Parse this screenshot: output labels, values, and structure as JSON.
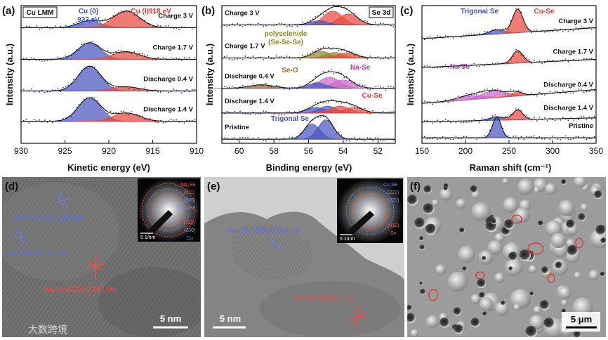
{
  "chart_data": [
    {
      "type": "line",
      "panel": "(a)",
      "title": "",
      "xlabel": "Kinetic energy (eV)",
      "ylabel": "Intensity (a.u.)",
      "xlim": [
        930,
        910
      ],
      "xticks": [
        930,
        925,
        920,
        915,
        910
      ],
      "badge": "Cu LMM",
      "annotations": [
        {
          "text": "Cu (0)",
          "color": "#3d50c8"
        },
        {
          "text": "922 eV",
          "color": "#3d50c8"
        },
        {
          "text": "Cu (I)918 eV",
          "color": "#e03c32"
        }
      ],
      "series": [
        {
          "name": "Charge 3 V",
          "baseline": 0.16,
          "components": [
            {
              "label": "Cu (0)",
              "center": 922.2,
              "width": 1.3,
              "height": 0.05,
              "color": "#4a56c0"
            },
            {
              "label": "Cu (I)",
              "center": 918.0,
              "width": 1.5,
              "height": 0.12,
              "color": "#e84a3e"
            }
          ]
        },
        {
          "name": "Charge 1.7 V",
          "baseline": 0.39,
          "components": [
            {
              "label": "Cu (0)",
              "center": 922.2,
              "width": 1.3,
              "height": 0.12,
              "color": "#4a56c0"
            },
            {
              "label": "Cu (I)",
              "center": 918.0,
              "width": 1.5,
              "height": 0.055,
              "color": "#e84a3e"
            }
          ]
        },
        {
          "name": "Discharge 0.4 V",
          "baseline": 0.62,
          "components": [
            {
              "label": "Cu (0)",
              "center": 922.2,
              "width": 1.3,
              "height": 0.18,
              "color": "#4a56c0"
            },
            {
              "label": "Cu (I)",
              "center": 918.0,
              "width": 1.5,
              "height": 0.03,
              "color": "#e84a3e"
            }
          ]
        },
        {
          "name": "Discharge 1.4 V",
          "baseline": 0.84,
          "components": [
            {
              "label": "Cu (0)",
              "center": 922.2,
              "width": 1.3,
              "height": 0.17,
              "color": "#4a56c0"
            },
            {
              "label": "Cu (I)",
              "center": 918.0,
              "width": 1.5,
              "height": 0.06,
              "color": "#e84a3e"
            }
          ]
        }
      ]
    },
    {
      "type": "line",
      "panel": "(b)",
      "title": "",
      "xlabel": "Binding energy (eV)",
      "ylabel": "Intensity (a.u.)",
      "xlim": [
        61,
        51
      ],
      "xticks": [
        60,
        58,
        56,
        54,
        52
      ],
      "badge": "Se 3d",
      "annotations": [
        {
          "text": "polyselenide",
          "color": "#8a8a2e"
        },
        {
          "text": "(Se-Se-Se)",
          "color": "#8a8a2e"
        },
        {
          "text": "Se-O",
          "color": "#a0692a"
        },
        {
          "text": "Na-Se",
          "color": "#b040b0"
        },
        {
          "text": "Cu-Se",
          "color": "#e03c32"
        },
        {
          "text": "Trigonal Se",
          "color": "#3d50c8"
        }
      ],
      "series": [
        {
          "name": "Charge 3 V",
          "baseline": 0.14,
          "components": [
            {
              "label": "Cu-Se",
              "center": 54.6,
              "width": 0.55,
              "height": 0.1,
              "color": "#e84a3e"
            },
            {
              "label": "Cu-Se",
              "center": 53.7,
              "width": 0.55,
              "height": 0.08,
              "color": "#e84a3e"
            },
            {
              "label": "Trigonal Se",
              "center": 55.4,
              "width": 0.5,
              "height": 0.03,
              "color": "#4a56c0"
            }
          ]
        },
        {
          "name": "Charge 1.7 V",
          "baseline": 0.38,
          "components": [
            {
              "label": "polyselenide",
              "center": 55.3,
              "width": 0.5,
              "height": 0.05,
              "color": "#8a8a2e"
            },
            {
              "label": "polyselenide",
              "center": 54.5,
              "width": 0.5,
              "height": 0.04,
              "color": "#8a8a2e"
            },
            {
              "label": "Cu-Se",
              "center": 53.8,
              "width": 0.55,
              "height": 0.035,
              "color": "#e84a3e"
            }
          ]
        },
        {
          "name": "Discharge 0.4 V",
          "baseline": 0.6,
          "components": [
            {
              "label": "Se-O",
              "center": 58.7,
              "width": 0.7,
              "height": 0.025,
              "color": "#a0692a"
            },
            {
              "label": "Na-Se",
              "center": 54.8,
              "width": 0.6,
              "height": 0.08,
              "color": "#c86ac8"
            },
            {
              "label": "Na-Se",
              "center": 54.0,
              "width": 0.6,
              "height": 0.06,
              "color": "#c86ac8"
            },
            {
              "label": "Trigonal Se",
              "center": 55.5,
              "width": 0.5,
              "height": 0.04,
              "color": "#4a56c0"
            }
          ]
        },
        {
          "name": "Discharge 1.4 V",
          "baseline": 0.78,
          "components": [
            {
              "label": "Trigonal Se",
              "center": 55.6,
              "width": 0.5,
              "height": 0.04,
              "color": "#4a56c0"
            },
            {
              "label": "Trigonal Se",
              "center": 54.9,
              "width": 0.5,
              "height": 0.05,
              "color": "#4a56c0"
            },
            {
              "label": "Cu-Se",
              "center": 54.2,
              "width": 0.55,
              "height": 0.05,
              "color": "#e84a3e"
            },
            {
              "label": "Cu-Se",
              "center": 53.4,
              "width": 0.55,
              "height": 0.04,
              "color": "#e84a3e"
            }
          ]
        },
        {
          "name": "Pristine",
          "baseline": 0.97,
          "components": [
            {
              "label": "Trigonal Se",
              "center": 55.8,
              "width": 0.45,
              "height": 0.11,
              "color": "#4a56c0"
            },
            {
              "label": "Trigonal Se",
              "center": 55.0,
              "width": 0.45,
              "height": 0.14,
              "color": "#4a56c0"
            }
          ]
        }
      ]
    },
    {
      "type": "line",
      "panel": "(c)",
      "title": "",
      "xlabel": "Raman shift (cm⁻¹)",
      "ylabel": "Intensity (a.u.)",
      "xlim": [
        150,
        350
      ],
      "xticks": [
        150,
        200,
        250,
        300,
        350
      ],
      "badge": "",
      "annotations": [
        {
          "text": "Trigonal Se",
          "color": "#3d50c8"
        },
        {
          "text": "Cu-Se",
          "color": "#e03c32"
        },
        {
          "text": "Na-Se",
          "color": "#b040b0"
        }
      ],
      "series": [
        {
          "name": "Charge 3 V",
          "baseline": 0.2,
          "slope": 0.08,
          "components": [
            {
              "label": "Trigonal Se",
              "center": 236,
              "width": 9,
              "height": 0.03,
              "color": "#4a56c0"
            },
            {
              "label": "Cu-Se",
              "center": 260,
              "width": 6,
              "height": 0.17,
              "color": "#e84a3e"
            }
          ]
        },
        {
          "name": "Charge 1.7 V",
          "baseline": 0.42,
          "slope": 0.06,
          "components": [
            {
              "label": "Cu-Se",
              "center": 260,
              "width": 6,
              "height": 0.09,
              "color": "#e84a3e"
            }
          ]
        },
        {
          "name": "Discharge 0.4 V",
          "baseline": 0.66,
          "slope": 0.1,
          "components": [
            {
              "label": "Na-Se",
              "center": 205,
              "width": 14,
              "height": 0.03,
              "color": "#c86ac8"
            },
            {
              "label": "Na-Se",
              "center": 232,
              "width": 14,
              "height": 0.05,
              "color": "#c86ac8"
            },
            {
              "label": "Cu-Se",
              "center": 258,
              "width": 7,
              "height": 0.025,
              "color": "#e84a3e"
            }
          ]
        },
        {
          "name": "Discharge 1.4 V",
          "baseline": 0.83,
          "slope": 0.03,
          "components": [
            {
              "label": "Trigonal Se",
              "center": 236,
              "width": 8,
              "height": 0.025,
              "color": "#4a56c0"
            },
            {
              "label": "Cu-Se",
              "center": 260,
              "width": 6,
              "height": 0.07,
              "color": "#e84a3e"
            }
          ]
        },
        {
          "name": "Pristine",
          "baseline": 0.96,
          "slope": 0.0,
          "components": [
            {
              "label": "Trigonal Se",
              "center": 236,
              "width": 5,
              "height": 0.15,
              "color": "#4a56c0"
            }
          ]
        }
      ]
    }
  ],
  "micrographs": {
    "d": {
      "letter": "(d)",
      "labels": [
        {
          "text": "Cu₂Se (200) 0.285 nm",
          "color": "#5b6ee8"
        },
        {
          "text": "Cu (200) 0.182 nm",
          "color": "#5b6ee8"
        },
        {
          "text": "Na₂Se (222) 0.197 nm",
          "color": "#ff4a3e"
        }
      ],
      "saed": [
        {
          "text": "Na₂Se",
          "color": "#ff5a4e"
        },
        {
          "text": "(011)",
          "color": "#ff5a4e"
        },
        {
          "text": "(200)",
          "color": "#7a8cff"
        },
        {
          "text": "Cu₂Se",
          "color": "#7a8cff"
        },
        {
          "text": "(111)",
          "color": "#ff5a4e"
        },
        {
          "text": "(200)",
          "color": "#7a8cff"
        },
        {
          "text": "Cu",
          "color": "#7a8cff"
        }
      ],
      "saed_scale": "5 1/nm",
      "scale": "5 nm",
      "watermark": "大数跨境"
    },
    "e": {
      "letter": "(e)",
      "labels": [
        {
          "text": "Cu₂Se (220) 0.201 nm",
          "color": "#5b6ee8"
        },
        {
          "text": "Se (100) 0.327 nm",
          "color": "#ff4a3e"
        }
      ],
      "saed": [
        {
          "text": "Cu₂Se",
          "color": "#7a8cff"
        },
        {
          "text": "(222)",
          "color": "#7a8cff"
        },
        {
          "text": "(220)",
          "color": "#7a8cff"
        },
        {
          "text": "(012)",
          "color": "#ff5a4e"
        },
        {
          "text": "Se",
          "color": "#ff5a4e"
        }
      ],
      "saed_scale": "5 1/nm",
      "scale": "5 nm"
    },
    "f": {
      "letter": "(f)",
      "scale": "5 μm"
    }
  }
}
